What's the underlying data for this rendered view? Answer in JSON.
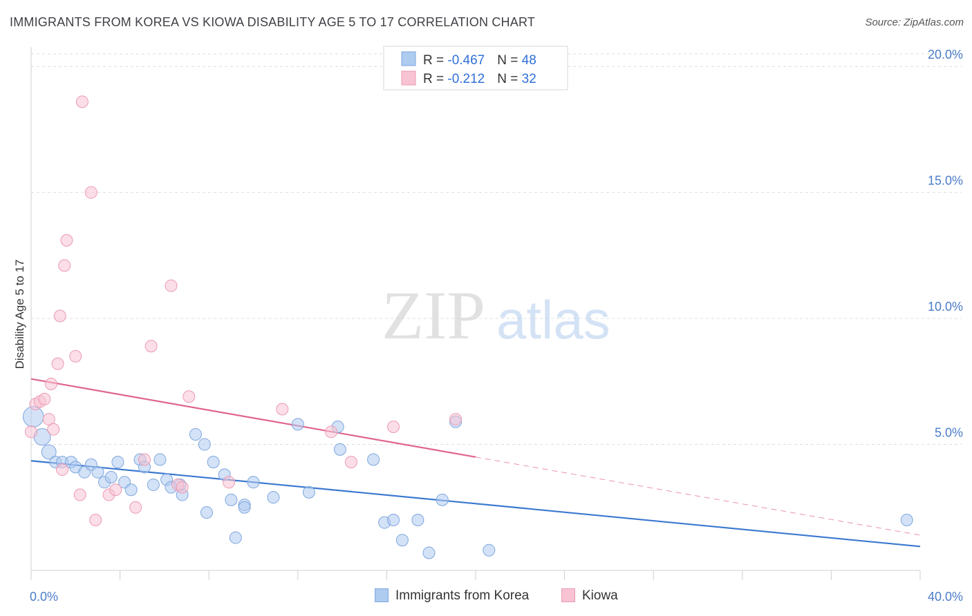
{
  "title": "IMMIGRANTS FROM KOREA VS KIOWA DISABILITY AGE 5 TO 17 CORRELATION CHART",
  "source": "Source: ZipAtlas.com",
  "watermark": {
    "zip": "ZIP",
    "atlas": "atlas"
  },
  "colors": {
    "korea_fill": "#aecbf0",
    "korea_stroke": "#7ea6de",
    "korea_line": "#3a78d0",
    "kiowa_fill": "#f8c3d3",
    "kiowa_stroke": "#ec9ab3",
    "kiowa_line": "#e0648c",
    "grid": "#dddddd",
    "tick_text": "#4a7cc9"
  },
  "legend_box": {
    "rows": [
      {
        "r_label": "R = ",
        "r_value": "-0.467",
        "n_label": "N = ",
        "n_value": "48",
        "series": "korea"
      },
      {
        "r_label": "R = ",
        "r_value": " -0.212",
        "n_label": "N = ",
        "n_value": "32",
        "series": "kiowa"
      }
    ]
  },
  "bottom_legend": {
    "korea": "Immigrants from Korea",
    "kiowa": "Kiowa"
  },
  "chart_data": {
    "type": "scatter",
    "xlabel": "",
    "ylabel": "Disability Age 5 to 17",
    "xlim": [
      0,
      40
    ],
    "ylim": [
      0,
      20.5
    ],
    "x_tick_labels": [
      {
        "value": 0,
        "label": "0.0%"
      },
      {
        "value": 40,
        "label": "40.0%"
      }
    ],
    "y_tick_labels": [
      {
        "value": 5,
        "label": "5.0%"
      },
      {
        "value": 10,
        "label": "10.0%"
      },
      {
        "value": 15,
        "label": "15.0%"
      },
      {
        "value": 20,
        "label": "20.0%"
      }
    ],
    "grid": "horizontal dashed",
    "series": [
      {
        "name": "Immigrants from Korea",
        "key": "korea",
        "r": -0.467,
        "n": 48,
        "points": [
          [
            0.1,
            6.1,
            3
          ],
          [
            0.5,
            5.3,
            2
          ],
          [
            0.8,
            4.7,
            1.5
          ],
          [
            1.1,
            4.3,
            1
          ],
          [
            1.4,
            4.3,
            1
          ],
          [
            1.8,
            4.3,
            1
          ],
          [
            2.0,
            4.1,
            1
          ],
          [
            2.4,
            3.9,
            1
          ],
          [
            2.7,
            4.2,
            1
          ],
          [
            3.0,
            3.9,
            1
          ],
          [
            3.3,
            3.5,
            1
          ],
          [
            3.6,
            3.7,
            1
          ],
          [
            3.9,
            4.3,
            1
          ],
          [
            4.2,
            3.5,
            1
          ],
          [
            4.5,
            3.2,
            1
          ],
          [
            4.9,
            4.4,
            1
          ],
          [
            5.1,
            4.1,
            1
          ],
          [
            5.5,
            3.4,
            1
          ],
          [
            5.8,
            4.4,
            1
          ],
          [
            6.1,
            3.6,
            1
          ],
          [
            6.3,
            3.3,
            1
          ],
          [
            6.8,
            3.0,
            1
          ],
          [
            6.7,
            3.4,
            1
          ],
          [
            7.4,
            5.4,
            1
          ],
          [
            7.8,
            5.0,
            1
          ],
          [
            8.2,
            4.3,
            1
          ],
          [
            7.9,
            2.3,
            1
          ],
          [
            8.7,
            3.8,
            1
          ],
          [
            9.0,
            2.8,
            1
          ],
          [
            9.2,
            1.3,
            1
          ],
          [
            9.6,
            2.6,
            1
          ],
          [
            10.0,
            3.5,
            1
          ],
          [
            9.6,
            2.5,
            1
          ],
          [
            10.9,
            2.9,
            1
          ],
          [
            12.0,
            5.8,
            1
          ],
          [
            12.5,
            3.1,
            1
          ],
          [
            13.9,
            4.8,
            1
          ],
          [
            13.8,
            5.7,
            1
          ],
          [
            15.4,
            4.4,
            1
          ],
          [
            15.9,
            1.9,
            1
          ],
          [
            16.3,
            2.0,
            1
          ],
          [
            16.7,
            1.2,
            1
          ],
          [
            17.4,
            2.0,
            1
          ],
          [
            17.9,
            0.7,
            1
          ],
          [
            18.5,
            2.8,
            1
          ],
          [
            19.1,
            5.9,
            1
          ],
          [
            20.6,
            0.8,
            1
          ],
          [
            39.4,
            2.0,
            1
          ]
        ],
        "trend": {
          "x0": 0,
          "y0": 4.35,
          "x1": 40,
          "y1": 0.95,
          "solid_to_x": 40
        }
      },
      {
        "name": "Kiowa",
        "key": "kiowa",
        "r": -0.212,
        "n": 32,
        "points": [
          [
            0.0,
            5.5,
            1
          ],
          [
            0.2,
            6.6,
            1
          ],
          [
            0.4,
            6.7,
            1
          ],
          [
            0.6,
            6.8,
            1
          ],
          [
            0.8,
            6.0,
            1
          ],
          [
            0.9,
            7.4,
            1
          ],
          [
            1.0,
            5.6,
            1
          ],
          [
            1.2,
            8.2,
            1
          ],
          [
            1.3,
            10.1,
            1
          ],
          [
            1.5,
            12.1,
            1
          ],
          [
            1.6,
            13.1,
            1
          ],
          [
            1.4,
            4.0,
            1
          ],
          [
            2.0,
            8.5,
            1
          ],
          [
            2.2,
            3.0,
            1
          ],
          [
            2.3,
            18.6,
            1
          ],
          [
            2.7,
            15.0,
            1
          ],
          [
            2.9,
            2.0,
            1
          ],
          [
            3.5,
            3.0,
            1
          ],
          [
            3.8,
            3.2,
            1
          ],
          [
            4.7,
            2.5,
            1
          ],
          [
            5.1,
            4.4,
            1
          ],
          [
            5.4,
            8.9,
            1
          ],
          [
            6.3,
            11.3,
            1
          ],
          [
            6.6,
            3.4,
            1
          ],
          [
            7.1,
            6.9,
            1
          ],
          [
            8.9,
            3.5,
            1
          ],
          [
            11.3,
            6.4,
            1
          ],
          [
            13.5,
            5.5,
            1
          ],
          [
            14.4,
            4.3,
            1
          ],
          [
            16.3,
            5.7,
            1
          ],
          [
            19.1,
            6.0,
            1
          ],
          [
            6.8,
            3.3,
            1
          ]
        ],
        "trend": {
          "x0": 0,
          "y0": 7.6,
          "x1": 40,
          "y1": 1.4,
          "solid_to_x": 20
        }
      }
    ]
  }
}
